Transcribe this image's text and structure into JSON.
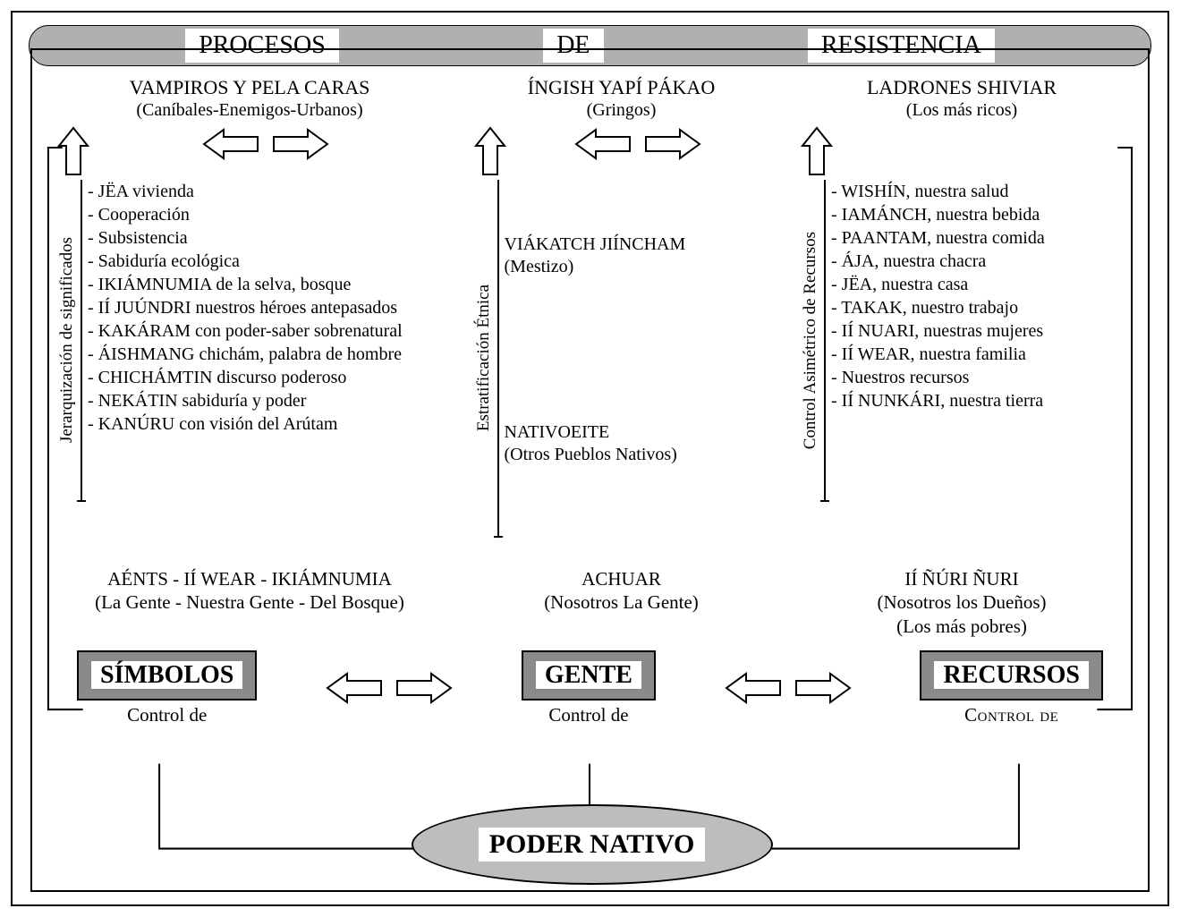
{
  "colors": {
    "grey_fill": "#b0b0b0",
    "pill_fill": "#8a8a8a",
    "ellipse_fill": "#bdbdbd",
    "stroke": "#000000",
    "bg": "#ffffff"
  },
  "title_words": [
    "PROCESOS",
    "DE",
    "RESISTENCIA"
  ],
  "col1": {
    "top_title": "VAMPIROS Y PELA CARAS",
    "top_sub": "(Caníbales-Enemigos-Urbanos)",
    "axis_label": "Jerarquización de significados",
    "items": [
      "- JËA vivienda",
      "- Cooperación",
      "- Subsistencia",
      "- Sabiduría ecológica",
      "- IKIÁMNUMIA de la selva, bosque",
      "- IÍ JUÚNDRI nuestros héroes antepasados",
      "- KAKÁRAM con poder-saber sobrenatural",
      "- ÁISHMANG chichám, palabra de hombre",
      "- CHICHÁMTIN discurso poderoso",
      "- NEKÁTIN sabiduría y poder",
      "- KANÚRU con visión del Arútam"
    ],
    "bottom_title": "AÉNTS - IÍ WEAR - IKIÁMNUMIA",
    "bottom_sub": "(La Gente - Nuestra Gente - Del Bosque)"
  },
  "col2": {
    "top_title": "ÍNGISH YAPÍ PÁKAO",
    "top_sub": "(Gringos)",
    "axis_label": "Estratificación Étnica",
    "mid1_title": "VIÁKATCH JIÍNCHAM",
    "mid1_sub": "(Mestizo)",
    "mid2_title": "NATIVOEITE",
    "mid2_sub": "(Otros Pueblos Nativos)",
    "bottom_title": "ACHUAR",
    "bottom_sub": "(Nosotros La Gente)"
  },
  "col3": {
    "top_title": "LADRONES SHIVIAR",
    "top_sub": "(Los más ricos)",
    "axis_label": "Control Asimétrico de Recursos",
    "items": [
      "- WISHÍN, nuestra salud",
      "- IAMÁNCH, nuestra bebida",
      "- PAANTAM, nuestra comida",
      "- ÁJA, nuestra chacra",
      "- JËA, nuestra casa",
      "- TAKAK, nuestro trabajo",
      "- IÍ NUARI, nuestras mujeres",
      "- IÍ WEAR, nuestra familia",
      "- Nuestros recursos",
      "- IÍ NUNKÁRI, nuestra tierra"
    ],
    "bottom_title": "IÍ ÑÚRI ÑURI",
    "bottom_sub1": "(Nosotros los Dueños)",
    "bottom_sub2": "(Los más pobres)"
  },
  "pills": {
    "simbolos": "SÍMBOLOS",
    "gente": "GENTE",
    "recursos": "RECURSOS"
  },
  "control_label_normal": "Control de",
  "control_label_sc": "Control de",
  "poder": "PODER NATIVO",
  "arrow_style": {
    "stroke": "#000000",
    "fill": "#ffffff",
    "stroke_width": 2
  }
}
